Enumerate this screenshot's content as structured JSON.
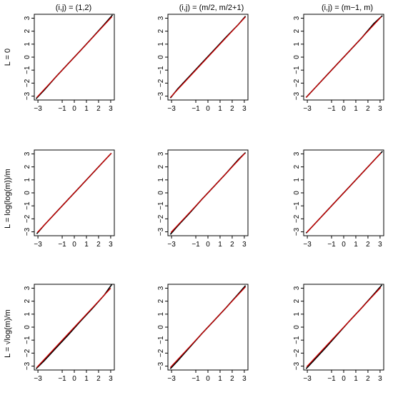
{
  "col_titles": [
    "(i,j) = (1,2)",
    "(i,j) = (m/2, m/2+1)",
    "(i,j) = (m−1, m)"
  ],
  "row_labels": [
    "L = 0",
    "L = log(log(m))/m",
    "L = √log(m)/m"
  ],
  "chart_data": [
    {
      "type": "line",
      "title": "(i,j) = (1,2)",
      "row_label": "L = 0",
      "xlim": [
        -3.3,
        3.3
      ],
      "ylim": [
        -3.3,
        3.3
      ],
      "x_ticks": [
        -3,
        -1,
        0,
        1,
        2,
        3
      ],
      "y_ticks": [
        -3,
        -2,
        -1,
        0,
        1,
        2,
        3
      ],
      "grid": false,
      "series": [
        {
          "color": "#000000",
          "x": [
            -3.15,
            -2.5,
            -1.5,
            -0.5,
            0.5,
            1.5,
            2.5,
            3.15
          ],
          "y": [
            -3.2,
            -2.55,
            -1.5,
            -0.5,
            0.5,
            1.52,
            2.55,
            3.25
          ]
        },
        {
          "color": "#cc0000",
          "x": [
            -3.1,
            3.1
          ],
          "y": [
            -3.1,
            3.1
          ]
        }
      ]
    },
    {
      "type": "line",
      "title": "(i,j) = (m/2, m/2+1)",
      "row_label": "L = 0",
      "xlim": [
        -3.3,
        3.3
      ],
      "ylim": [
        -3.3,
        3.3
      ],
      "x_ticks": [
        -3,
        -1,
        0,
        1,
        2,
        3
      ],
      "y_ticks": [
        -3,
        -2,
        -1,
        0,
        1,
        2,
        3
      ],
      "grid": false,
      "series": [
        {
          "color": "#000000",
          "x": [
            -3.1,
            -2.5,
            -1.5,
            -0.5,
            0.5,
            1.5,
            2.5,
            3.1
          ],
          "y": [
            -3.15,
            -2.45,
            -1.45,
            -0.45,
            0.55,
            1.55,
            2.5,
            3.15
          ]
        },
        {
          "color": "#cc0000",
          "x": [
            -3.1,
            3.1
          ],
          "y": [
            -3.1,
            3.1
          ]
        }
      ]
    },
    {
      "type": "line",
      "title": "(i,j) = (m−1, m)",
      "row_label": "L = 0",
      "xlim": [
        -3.3,
        3.3
      ],
      "ylim": [
        -3.3,
        3.3
      ],
      "x_ticks": [
        -3,
        -1,
        0,
        1,
        2,
        3
      ],
      "y_ticks": [
        -3,
        -2,
        -1,
        0,
        1,
        2,
        3
      ],
      "grid": false,
      "series": [
        {
          "color": "#000000",
          "x": [
            -3.1,
            -2.5,
            -1.5,
            -0.5,
            0.5,
            1.5,
            2.5,
            3.2
          ],
          "y": [
            -3.1,
            -2.5,
            -1.5,
            -0.5,
            0.5,
            1.5,
            2.6,
            3.2
          ]
        },
        {
          "color": "#cc0000",
          "x": [
            -3.1,
            3.1
          ],
          "y": [
            -3.1,
            3.1
          ]
        }
      ]
    },
    {
      "type": "line",
      "title": "",
      "row_label": "L = log(log(m))/m",
      "xlim": [
        -3.3,
        3.3
      ],
      "ylim": [
        -3.3,
        3.3
      ],
      "x_ticks": [
        -3,
        -1,
        0,
        1,
        2,
        3
      ],
      "y_ticks": [
        -3,
        -2,
        -1,
        0,
        1,
        2,
        3
      ],
      "grid": false,
      "series": [
        {
          "color": "#000000",
          "x": [
            -3.1,
            -2.5,
            -1.5,
            -0.5,
            0.5,
            1.5,
            2.5,
            3.05
          ],
          "y": [
            -3.15,
            -2.5,
            -1.5,
            -0.5,
            0.5,
            1.5,
            2.5,
            3.05
          ]
        },
        {
          "color": "#cc0000",
          "x": [
            -3.05,
            3.05
          ],
          "y": [
            -3.05,
            3.05
          ]
        }
      ]
    },
    {
      "type": "line",
      "title": "",
      "row_label": "L = log(log(m))/m",
      "xlim": [
        -3.3,
        3.3
      ],
      "ylim": [
        -3.3,
        3.3
      ],
      "x_ticks": [
        -3,
        -1,
        0,
        1,
        2,
        3
      ],
      "y_ticks": [
        -3,
        -2,
        -1,
        0,
        1,
        2,
        3
      ],
      "grid": false,
      "series": [
        {
          "color": "#000000",
          "x": [
            -3.1,
            -2.5,
            -1.5,
            -0.5,
            0.5,
            1.5,
            2.5,
            3.1
          ],
          "y": [
            -3.2,
            -2.55,
            -1.55,
            -0.5,
            0.5,
            1.5,
            2.55,
            3.1
          ]
        },
        {
          "color": "#cc0000",
          "x": [
            -3.05,
            3.05
          ],
          "y": [
            -3.05,
            3.05
          ]
        }
      ]
    },
    {
      "type": "line",
      "title": "",
      "row_label": "L = log(log(m))/m",
      "xlim": [
        -3.3,
        3.3
      ],
      "ylim": [
        -3.3,
        3.3
      ],
      "x_ticks": [
        -3,
        -1,
        0,
        1,
        2,
        3
      ],
      "y_ticks": [
        -3,
        -2,
        -1,
        0,
        1,
        2,
        3
      ],
      "grid": false,
      "series": [
        {
          "color": "#000000",
          "x": [
            -3.1,
            -2.5,
            -1.5,
            -0.5,
            0.5,
            1.5,
            2.5,
            3.2
          ],
          "y": [
            -3.1,
            -2.5,
            -1.5,
            -0.5,
            0.5,
            1.5,
            2.5,
            3.2
          ]
        },
        {
          "color": "#cc0000",
          "x": [
            -3.05,
            3.05
          ],
          "y": [
            -3.05,
            3.05
          ]
        }
      ]
    },
    {
      "type": "line",
      "title": "",
      "row_label": "L = √log(m)/m",
      "xlim": [
        -3.3,
        3.3
      ],
      "ylim": [
        -3.3,
        3.3
      ],
      "x_ticks": [
        -3,
        -1,
        0,
        1,
        2,
        3
      ],
      "y_ticks": [
        -3,
        -2,
        -1,
        0,
        1,
        2,
        3
      ],
      "grid": false,
      "series": [
        {
          "color": "#000000",
          "x": [
            -3.15,
            -2.5,
            -1.5,
            -0.5,
            0.5,
            1.5,
            2.5,
            3.1
          ],
          "y": [
            -3.2,
            -2.6,
            -1.6,
            -0.6,
            0.45,
            1.45,
            2.5,
            3.3
          ]
        },
        {
          "color": "#cc0000",
          "x": [
            -3.1,
            3.0
          ],
          "y": [
            -3.1,
            3.0
          ]
        }
      ]
    },
    {
      "type": "line",
      "title": "",
      "row_label": "L = √log(m)/m",
      "xlim": [
        -3.3,
        3.3
      ],
      "ylim": [
        -3.3,
        3.3
      ],
      "x_ticks": [
        -3,
        -1,
        0,
        1,
        2,
        3
      ],
      "y_ticks": [
        -3,
        -2,
        -1,
        0,
        1,
        2,
        3
      ],
      "grid": false,
      "series": [
        {
          "color": "#000000",
          "x": [
            -3.1,
            -2.5,
            -1.5,
            -0.5,
            0.5,
            1.5,
            2.5,
            3.1
          ],
          "y": [
            -3.2,
            -2.6,
            -1.55,
            -0.5,
            0.5,
            1.5,
            2.55,
            3.2
          ]
        },
        {
          "color": "#cc0000",
          "x": [
            -3.1,
            3.1
          ],
          "y": [
            -3.1,
            3.1
          ]
        }
      ]
    },
    {
      "type": "line",
      "title": "",
      "row_label": "L = √log(m)/m",
      "xlim": [
        -3.3,
        3.3
      ],
      "ylim": [
        -3.3,
        3.3
      ],
      "x_ticks": [
        -3,
        -1,
        0,
        1,
        2,
        3
      ],
      "y_ticks": [
        -3,
        -2,
        -1,
        0,
        1,
        2,
        3
      ],
      "grid": false,
      "series": [
        {
          "color": "#000000",
          "x": [
            -3.1,
            -2.5,
            -1.5,
            -0.5,
            0.5,
            1.5,
            2.5,
            3.15
          ],
          "y": [
            -3.2,
            -2.6,
            -1.6,
            -0.55,
            0.5,
            1.5,
            2.55,
            3.25
          ]
        },
        {
          "color": "#cc0000",
          "x": [
            -3.05,
            3.05
          ],
          "y": [
            -3.05,
            3.05
          ]
        }
      ]
    }
  ]
}
